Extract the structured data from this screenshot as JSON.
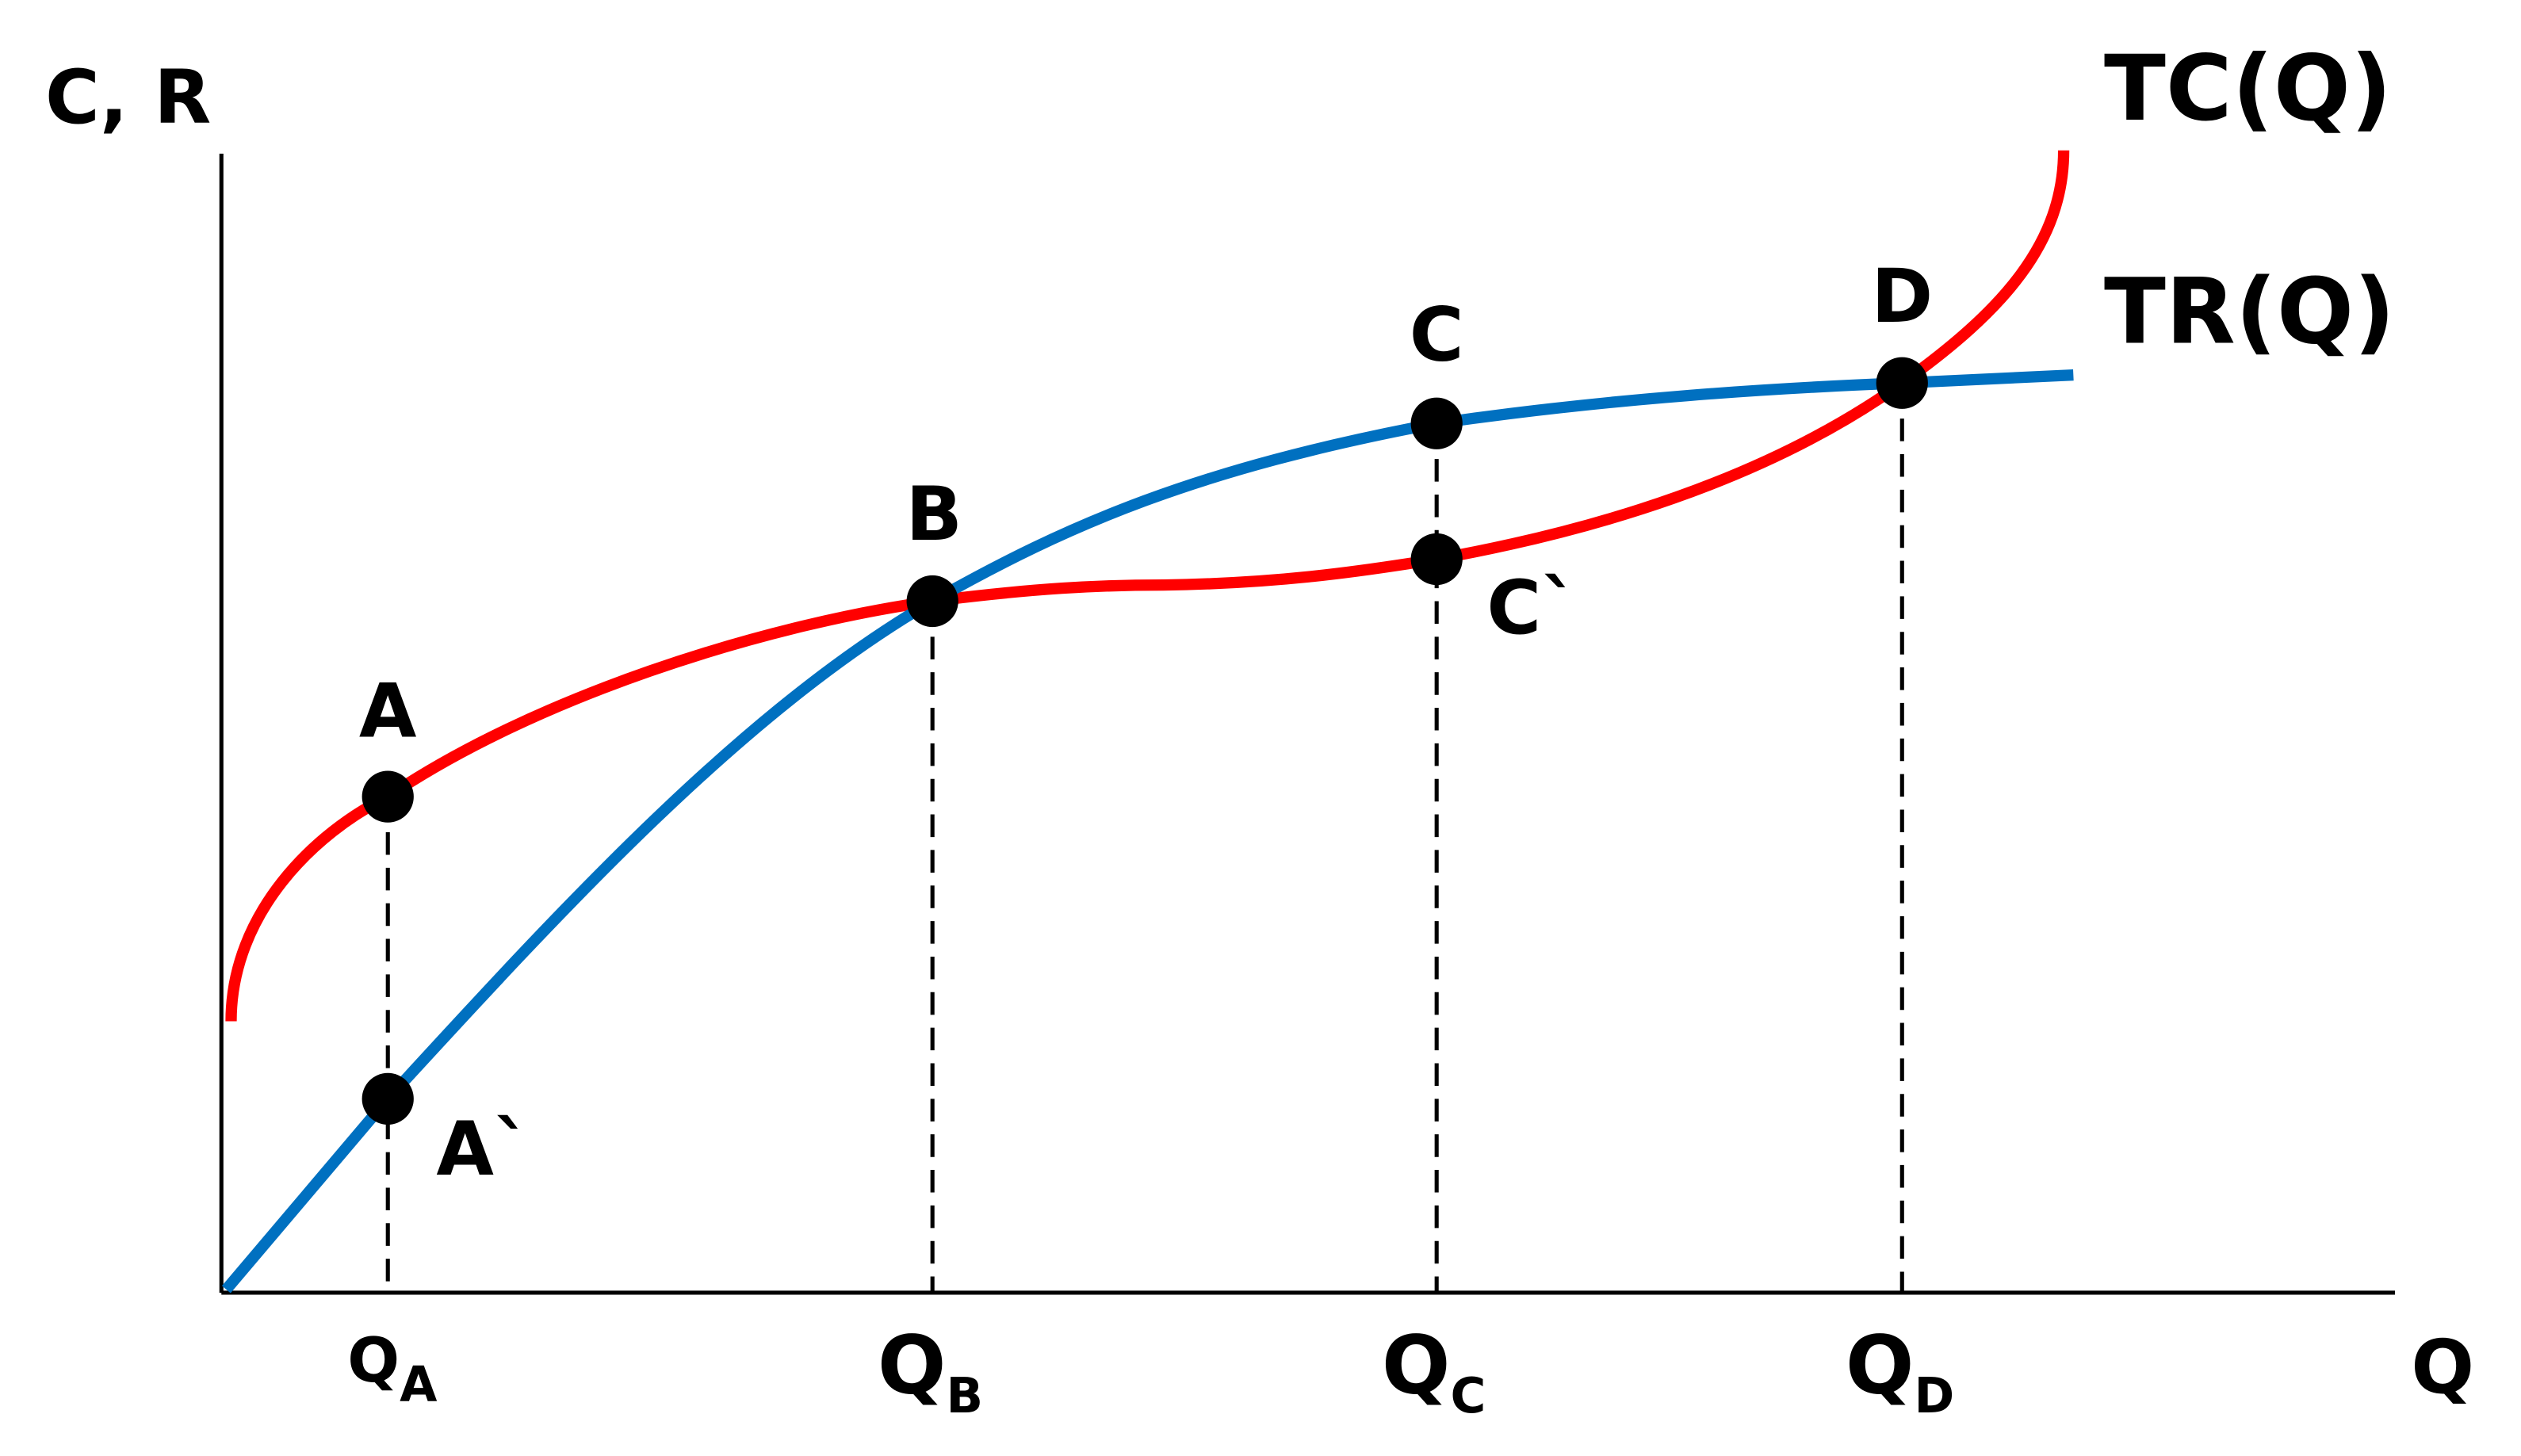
{
  "axes": {
    "y_label": "C, R",
    "x_label": "Q"
  },
  "curves": {
    "tc": "TC(Q)",
    "tr": "TR(Q)"
  },
  "points": {
    "a": "A",
    "a_prime": "A`",
    "b": "B",
    "c": "C",
    "c_prime": "C`",
    "d": "D"
  },
  "x_marks": [
    {
      "main": "Q",
      "sub": "A"
    },
    {
      "main": "Q",
      "sub": "B"
    },
    {
      "main": "Q",
      "sub": "C"
    },
    {
      "main": "Q",
      "sub": "D"
    }
  ]
}
